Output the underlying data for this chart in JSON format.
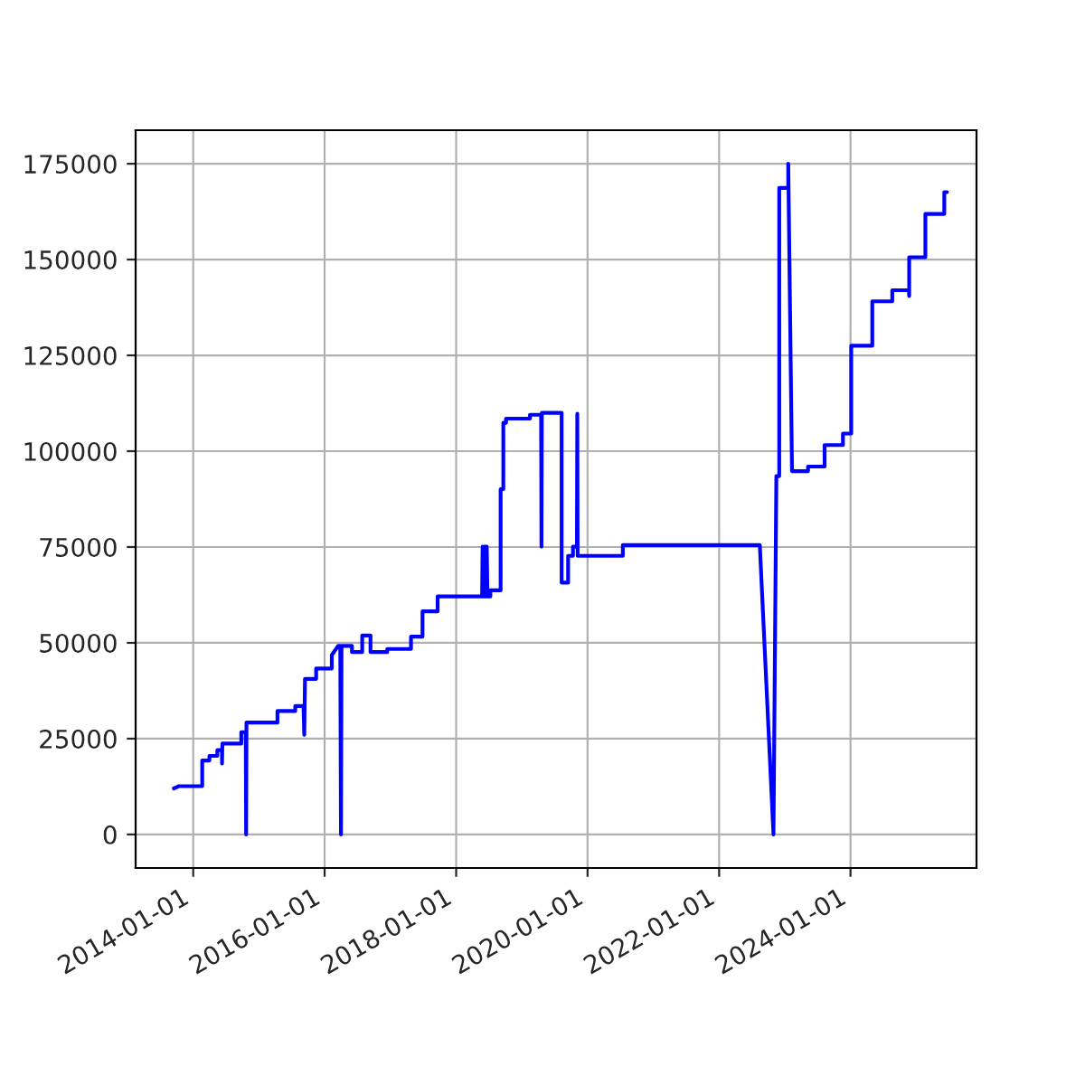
{
  "chart_data": {
    "type": "line",
    "color": "#0000ff",
    "grid": true,
    "marker": "none",
    "line_style": "solid",
    "xlim": [
      "2013-02-15",
      "2025-12-01"
    ],
    "ylim": [
      -8750,
      183750
    ],
    "xticks": [
      {
        "value": "2014-01-01",
        "label": "2014-01-01"
      },
      {
        "value": "2016-01-01",
        "label": "2016-01-01"
      },
      {
        "value": "2018-01-01",
        "label": "2018-01-01"
      },
      {
        "value": "2020-01-01",
        "label": "2020-01-01"
      },
      {
        "value": "2022-01-01",
        "label": "2022-01-01"
      },
      {
        "value": "2024-01-01",
        "label": "2024-01-01"
      }
    ],
    "yticks": [
      0,
      25000,
      50000,
      75000,
      100000,
      125000,
      150000,
      175000
    ],
    "x": [
      "2013-09-15",
      "2013-10-10",
      "2013-10-10",
      "2014-02-20",
      "2014-02-20",
      "2014-04-01",
      "2014-04-01",
      "2014-05-15",
      "2014-05-15",
      "2014-06-10",
      "2014-06-10",
      "2014-06-12",
      "2014-06-12",
      "2014-09-25",
      "2014-09-25",
      "2014-10-20",
      "2014-10-22",
      "2014-10-24",
      "2015-04-14",
      "2015-04-14",
      "2015-07-22",
      "2015-07-22",
      "2015-09-06",
      "2015-09-10",
      "2015-09-14",
      "2015-11-15",
      "2015-11-15",
      "2016-02-10",
      "2016-02-10",
      "2016-03-16",
      "2016-03-28",
      "2016-04-01",
      "2016-04-04",
      "2016-06-01",
      "2016-06-01",
      "2016-07-28",
      "2016-07-28",
      "2016-09-12",
      "2016-09-12",
      "2016-12-14",
      "2016-12-14",
      "2017-04-25",
      "2017-04-25",
      "2017-06-28",
      "2017-06-28",
      "2017-09-20",
      "2017-09-20",
      "2018-05-25",
      "2018-05-28",
      "2018-06-01",
      "2018-06-04",
      "2018-06-08",
      "2018-06-12",
      "2018-06-16",
      "2018-06-20",
      "2018-06-24",
      "2018-07-10",
      "2018-07-10",
      "2018-09-05",
      "2018-09-05",
      "2018-09-20",
      "2018-09-20",
      "2018-10-05",
      "2018-10-05",
      "2019-02-15",
      "2019-02-15",
      "2019-04-18",
      "2019-04-20",
      "2019-04-22",
      "2019-08-10",
      "2019-08-10",
      "2019-09-15",
      "2019-09-15",
      "2019-10-12",
      "2019-10-12",
      "2019-11-03",
      "2019-11-05",
      "2019-11-07",
      "2020-07-15",
      "2020-07-15",
      "2022-08-15",
      "2022-10-30",
      "2022-11-15",
      "2022-12-01",
      "2022-12-01",
      "2023-01-20",
      "2023-01-20",
      "2023-02-10",
      "2023-05-10",
      "2023-05-10",
      "2023-08-10",
      "2023-08-10",
      "2023-11-20",
      "2023-11-20",
      "2024-01-05",
      "2024-01-05",
      "2024-05-01",
      "2024-05-01",
      "2024-08-20",
      "2024-08-20",
      "2024-11-20",
      "2024-11-22",
      "2024-11-22",
      "2025-02-20",
      "2025-02-20",
      "2025-06-05",
      "2025-06-05",
      "2025-06-20"
    ],
    "values": [
      12000,
      12500,
      12600,
      12600,
      19300,
      19300,
      20500,
      20500,
      22000,
      22000,
      18500,
      23700,
      23700,
      23700,
      26700,
      26700,
      0,
      29200,
      29200,
      32200,
      32200,
      33500,
      33500,
      26000,
      40600,
      40600,
      43300,
      43300,
      46800,
      49200,
      49200,
      0,
      49200,
      49200,
      47600,
      47600,
      51900,
      51900,
      47600,
      47600,
      48400,
      48400,
      51600,
      51600,
      58200,
      58200,
      62100,
      62100,
      75100,
      62100,
      75100,
      62100,
      75100,
      62100,
      75100,
      62100,
      62100,
      63700,
      63700,
      90100,
      90100,
      107400,
      107400,
      108500,
      108500,
      109500,
      109500,
      75100,
      110000,
      110000,
      65700,
      65700,
      72700,
      72700,
      75100,
      75100,
      109800,
      72700,
      72700,
      75500,
      75500,
      0,
      93500,
      93500,
      168700,
      168700,
      175000,
      94800,
      94800,
      96000,
      96000,
      101600,
      101600,
      104600,
      104600,
      127500,
      127500,
      139100,
      139100,
      142000,
      142000,
      140500,
      150600,
      150600,
      161900,
      161900,
      167600,
      167600
    ]
  }
}
